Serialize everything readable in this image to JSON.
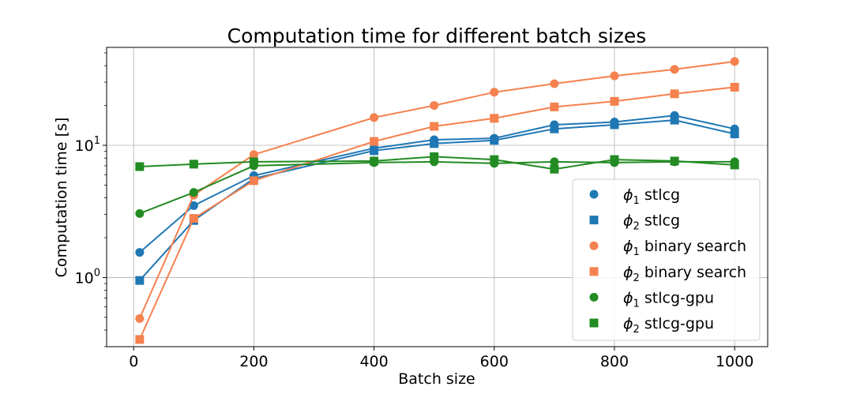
{
  "chart_data": {
    "type": "line",
    "title": "Computation time for different batch sizes",
    "xlabel": "Batch size",
    "ylabel": "Computation time [s]",
    "xlim": [
      -45,
      1055
    ],
    "ylim": [
      0.3,
      55
    ],
    "yscale": "log",
    "grid": true,
    "legend_position": "lower-right",
    "x_ticks": [
      0,
      200,
      400,
      600,
      800,
      1000
    ],
    "x_tick_labels": [
      "0",
      "200",
      "400",
      "600",
      "800",
      "1000"
    ],
    "y_ticks": [
      1,
      10
    ],
    "y_tick_labels": [
      {
        "base": "10",
        "exp": "0"
      },
      {
        "base": "10",
        "exp": "1"
      }
    ],
    "x": [
      10,
      100,
      200,
      400,
      500,
      600,
      700,
      800,
      900,
      1000
    ],
    "series": [
      {
        "name": "stlcg",
        "subscript": "1",
        "marker": "circle",
        "color": "#1f77b4",
        "values": [
          1.55,
          3.5,
          5.9,
          9.5,
          11.0,
          11.3,
          14.3,
          15.0,
          16.8,
          13.3
        ]
      },
      {
        "name": "stlcg",
        "subscript": "2",
        "marker": "square",
        "color": "#1f77b4",
        "values": [
          0.95,
          2.7,
          5.6,
          9.1,
          10.3,
          10.9,
          13.3,
          14.3,
          15.5,
          12.2
        ]
      },
      {
        "name": "binary search",
        "subscript": "1",
        "marker": "circle",
        "color": "#f5814f",
        "values": [
          0.49,
          4.2,
          8.5,
          16.2,
          20.0,
          25.2,
          29.2,
          33.5,
          37.5,
          43.0
        ]
      },
      {
        "name": "binary search",
        "subscript": "2",
        "marker": "square",
        "color": "#f5814f",
        "values": [
          0.34,
          2.8,
          5.4,
          10.7,
          13.9,
          16.0,
          19.5,
          21.5,
          24.5,
          27.5
        ]
      },
      {
        "name": "stlcg-gpu",
        "subscript": "1",
        "marker": "circle",
        "color": "#228b22",
        "values": [
          3.05,
          4.4,
          7.0,
          7.4,
          7.5,
          7.3,
          7.5,
          7.4,
          7.5,
          7.5
        ]
      },
      {
        "name": "stlcg-gpu",
        "subscript": "2",
        "marker": "square",
        "color": "#228b22",
        "values": [
          6.9,
          7.2,
          7.5,
          7.6,
          8.2,
          7.8,
          6.6,
          7.8,
          7.6,
          7.1
        ]
      }
    ]
  }
}
